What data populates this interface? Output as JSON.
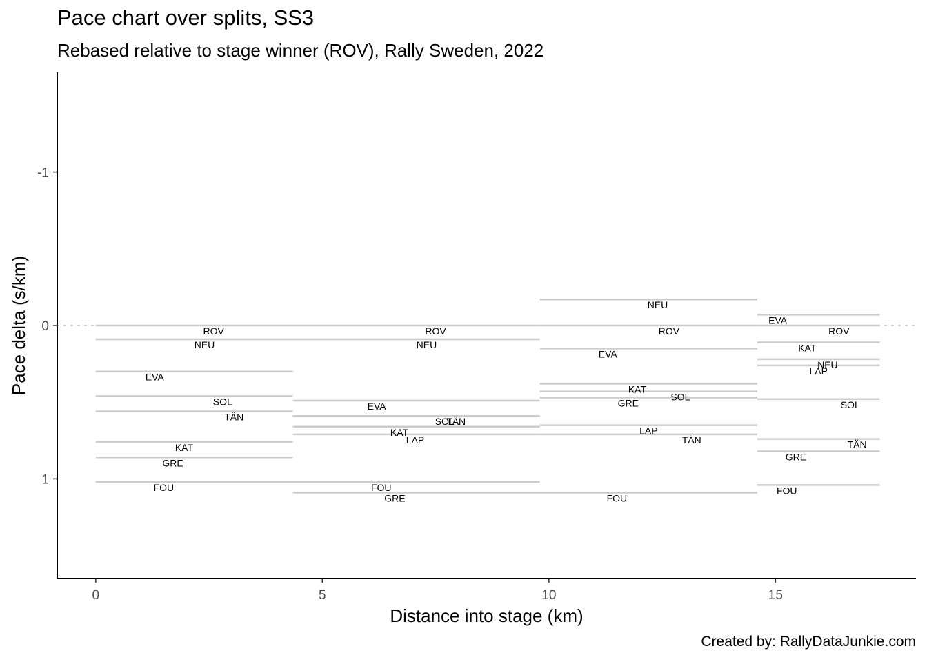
{
  "chart_data": {
    "type": "line",
    "title": "Pace chart over splits, SS3",
    "subtitle": "Rebased relative to stage winner (ROV), Rally Sweden, 2022",
    "caption": "Created by: RallyDataJunkie.com",
    "xlabel": "Distance into stage (km)",
    "ylabel": "Pace delta (s/km)",
    "xlim": [
      -0.85,
      18.1
    ],
    "ylim": [
      -1.65,
      1.65
    ],
    "y_reversed": true,
    "x_ticks": [
      0,
      5,
      10,
      15
    ],
    "y_ticks": [
      -1,
      0,
      1
    ],
    "reference_line": {
      "y": 0,
      "style": "dotted"
    },
    "grid": false,
    "colors": {
      "segment": "#cccccc",
      "reference": "#c8c8c8",
      "axis": "#000000"
    },
    "splits": [
      {
        "x_start": 0.0,
        "x_end": 4.35,
        "drivers": [
          {
            "name": "ROV",
            "pace": 0.0,
            "label_x": 2.6
          },
          {
            "name": "NEU",
            "pace": 0.09,
            "label_x": 2.4
          },
          {
            "name": "EVA",
            "pace": 0.3,
            "label_x": 1.3
          },
          {
            "name": "SOL",
            "pace": 0.46,
            "label_x": 2.8
          },
          {
            "name": "TÄN",
            "pace": 0.56,
            "label_x": 3.05
          },
          {
            "name": "KAT",
            "pace": 0.76,
            "label_x": 1.95
          },
          {
            "name": "GRE",
            "pace": 0.86,
            "label_x": 1.7
          },
          {
            "name": "FOU",
            "pace": 1.02,
            "label_x": 1.5
          }
        ]
      },
      {
        "x_start": 4.35,
        "x_end": 9.8,
        "drivers": [
          {
            "name": "ROV",
            "pace": 0.0,
            "label_x": 7.5
          },
          {
            "name": "NEU",
            "pace": 0.09,
            "label_x": 7.3
          },
          {
            "name": "EVA",
            "pace": 0.49,
            "label_x": 6.2
          },
          {
            "name": "SOL",
            "pace": 0.59,
            "label_x": 7.7
          },
          {
            "name": "TÄN",
            "pace": 0.59,
            "label_x": 7.95
          },
          {
            "name": "KAT",
            "pace": 0.66,
            "label_x": 6.7
          },
          {
            "name": "LAP",
            "pace": 0.71,
            "label_x": 7.05
          },
          {
            "name": "FOU",
            "pace": 1.02,
            "label_x": 6.3
          },
          {
            "name": "GRE",
            "pace": 1.09,
            "label_x": 6.6
          }
        ]
      },
      {
        "x_start": 9.8,
        "x_end": 14.6,
        "drivers": [
          {
            "name": "NEU",
            "pace": -0.17,
            "label_x": 12.4
          },
          {
            "name": "ROV",
            "pace": 0.0,
            "label_x": 12.65
          },
          {
            "name": "EVA",
            "pace": 0.15,
            "label_x": 11.3
          },
          {
            "name": "KAT",
            "pace": 0.38,
            "label_x": 11.95
          },
          {
            "name": "SOL",
            "pace": 0.43,
            "label_x": 12.9
          },
          {
            "name": "GRE",
            "pace": 0.47,
            "label_x": 11.75
          },
          {
            "name": "LAP",
            "pace": 0.65,
            "label_x": 12.2
          },
          {
            "name": "TÄN",
            "pace": 0.71,
            "label_x": 13.15
          },
          {
            "name": "FOU",
            "pace": 1.09,
            "label_x": 11.5
          }
        ]
      },
      {
        "x_start": 14.6,
        "x_end": 17.3,
        "drivers": [
          {
            "name": "EVA",
            "pace": -0.07,
            "label_x": 15.05
          },
          {
            "name": "ROV",
            "pace": 0.0,
            "label_x": 16.4
          },
          {
            "name": "KAT",
            "pace": 0.11,
            "label_x": 15.7
          },
          {
            "name": "NEU",
            "pace": 0.22,
            "label_x": 16.15
          },
          {
            "name": "LAP",
            "pace": 0.26,
            "label_x": 15.95
          },
          {
            "name": "SOL",
            "pace": 0.48,
            "label_x": 16.65
          },
          {
            "name": "TÄN",
            "pace": 0.74,
            "label_x": 16.8
          },
          {
            "name": "GRE",
            "pace": 0.82,
            "label_x": 15.45
          },
          {
            "name": "FOU",
            "pace": 1.04,
            "label_x": 15.25
          }
        ]
      }
    ]
  }
}
